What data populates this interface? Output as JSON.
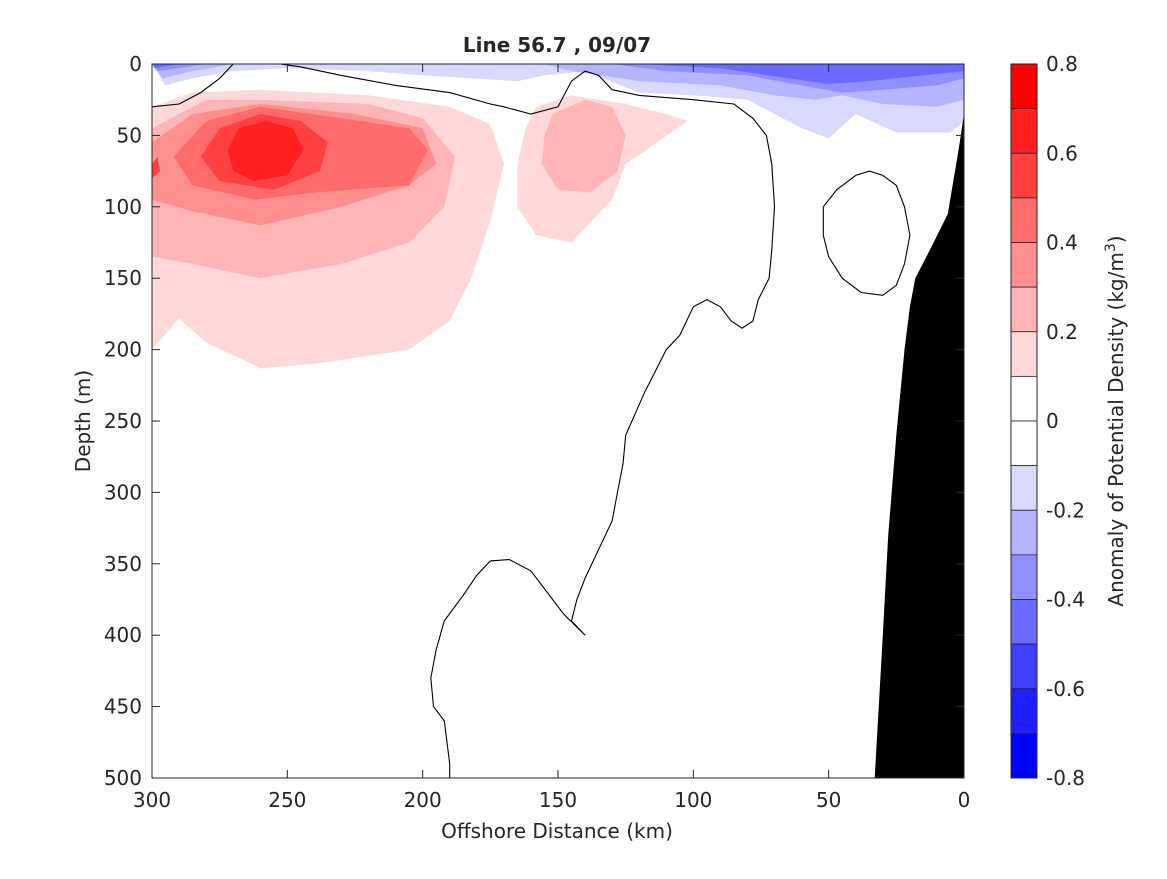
{
  "chart_data": {
    "type": "contour",
    "title": "Line 56.7 , 09/07",
    "xlabel": "Offshore Distance (km)",
    "ylabel": "Depth (m)",
    "xlim": [
      300,
      0
    ],
    "ylim": [
      500,
      0
    ],
    "x_ticks": [
      300,
      250,
      200,
      150,
      100,
      50,
      0
    ],
    "y_ticks": [
      0,
      50,
      100,
      150,
      200,
      250,
      300,
      350,
      400,
      450,
      500
    ],
    "colorbar": {
      "label": "Anomaly of Potential Density (kg/m",
      "label_superscript": "3",
      "label_close": ")",
      "range": [
        -0.8,
        0.8
      ],
      "tick_labels": [
        "0.8",
        "0.6",
        "0.4",
        "0.2",
        "0",
        "-0.2",
        "-0.4",
        "-0.6",
        "-0.8"
      ],
      "levels": [
        {
          "from": 0.7,
          "to": 0.8,
          "color": "#ff0000"
        },
        {
          "from": 0.6,
          "to": 0.7,
          "color": "#ff2020"
        },
        {
          "from": 0.5,
          "to": 0.6,
          "color": "#ff4040"
        },
        {
          "from": 0.4,
          "to": 0.5,
          "color": "#ff6a6a"
        },
        {
          "from": 0.3,
          "to": 0.4,
          "color": "#ff8f8f"
        },
        {
          "from": 0.2,
          "to": 0.3,
          "color": "#ffb5b5"
        },
        {
          "from": 0.1,
          "to": 0.2,
          "color": "#ffd9d9"
        },
        {
          "from": 0.0,
          "to": 0.1,
          "color": "#ffffff"
        },
        {
          "from": -0.1,
          "to": 0.0,
          "color": "#ffffff"
        },
        {
          "from": -0.2,
          "to": -0.1,
          "color": "#d9d9ff"
        },
        {
          "from": -0.3,
          "to": -0.2,
          "color": "#b5b5ff"
        },
        {
          "from": -0.4,
          "to": -0.3,
          "color": "#8f8fff"
        },
        {
          "from": -0.5,
          "to": -0.4,
          "color": "#6a6aff"
        },
        {
          "from": -0.6,
          "to": -0.5,
          "color": "#4040ff"
        },
        {
          "from": -0.7,
          "to": -0.6,
          "color": "#2020ff"
        },
        {
          "from": -0.8,
          "to": -0.7,
          "color": "#0000ff"
        }
      ]
    },
    "anomaly_regions": [
      {
        "level": 0.15,
        "color": "#ffd9d9",
        "outline": [
          [
            300,
            30
          ],
          [
            285,
            20
          ],
          [
            260,
            18
          ],
          [
            220,
            22
          ],
          [
            190,
            30
          ],
          [
            175,
            42
          ],
          [
            170,
            70
          ],
          [
            175,
            110
          ],
          [
            182,
            150
          ],
          [
            190,
            180
          ],
          [
            205,
            200
          ],
          [
            240,
            210
          ],
          [
            260,
            213
          ],
          [
            280,
            195
          ],
          [
            290,
            178
          ],
          [
            300,
            200
          ]
        ]
      },
      {
        "level": 0.25,
        "color": "#ffb5b5",
        "outline": [
          [
            300,
            45
          ],
          [
            280,
            25
          ],
          [
            260,
            25
          ],
          [
            220,
            28
          ],
          [
            200,
            38
          ],
          [
            188,
            65
          ],
          [
            192,
            100
          ],
          [
            205,
            125
          ],
          [
            230,
            140
          ],
          [
            260,
            150
          ],
          [
            285,
            140
          ],
          [
            300,
            135
          ]
        ]
      },
      {
        "level": 0.35,
        "color": "#ff8f8f",
        "outline": [
          [
            300,
            55
          ],
          [
            285,
            35
          ],
          [
            260,
            28
          ],
          [
            225,
            35
          ],
          [
            200,
            45
          ],
          [
            195,
            70
          ],
          [
            205,
            85
          ],
          [
            230,
            100
          ],
          [
            260,
            113
          ],
          [
            285,
            103
          ],
          [
            300,
            95
          ]
        ]
      },
      {
        "level": 0.45,
        "color": "#ff6a6a",
        "outline": [
          [
            292,
            65
          ],
          [
            280,
            40
          ],
          [
            260,
            30
          ],
          [
            230,
            38
          ],
          [
            205,
            45
          ],
          [
            198,
            60
          ],
          [
            205,
            85
          ],
          [
            240,
            90
          ],
          [
            262,
            95
          ],
          [
            285,
            85
          ]
        ]
      },
      {
        "level": 0.55,
        "color": "#ff4040",
        "outline": [
          [
            282,
            65
          ],
          [
            275,
            45
          ],
          [
            260,
            35
          ],
          [
            245,
            40
          ],
          [
            235,
            55
          ],
          [
            238,
            75
          ],
          [
            255,
            88
          ],
          [
            275,
            82
          ]
        ]
      },
      {
        "level": 0.65,
        "color": "#ff2020",
        "outline": [
          [
            272,
            60
          ],
          [
            268,
            45
          ],
          [
            258,
            40
          ],
          [
            248,
            45
          ],
          [
            244,
            60
          ],
          [
            250,
            78
          ],
          [
            262,
            82
          ],
          [
            270,
            75
          ]
        ]
      },
      {
        "level": 0.55,
        "color": "#ff4040",
        "outline": [
          [
            300,
            70
          ],
          [
            298,
            65
          ],
          [
            297,
            75
          ],
          [
            300,
            80
          ]
        ]
      },
      {
        "level": 0.15,
        "color": "#ffd9d9",
        "outline": [
          [
            158,
            30
          ],
          [
            145,
            22
          ],
          [
            125,
            28
          ],
          [
            110,
            35
          ],
          [
            102,
            40
          ],
          [
            125,
            70
          ],
          [
            130,
            95
          ],
          [
            145,
            125
          ],
          [
            158,
            120
          ],
          [
            165,
            100
          ],
          [
            165,
            70
          ],
          [
            162,
            45
          ]
        ]
      },
      {
        "level": 0.25,
        "color": "#ffb5b5",
        "outline": [
          [
            152,
            35
          ],
          [
            140,
            25
          ],
          [
            130,
            30
          ],
          [
            125,
            50
          ],
          [
            128,
            75
          ],
          [
            138,
            90
          ],
          [
            150,
            88
          ],
          [
            156,
            70
          ],
          [
            155,
            50
          ]
        ]
      },
      {
        "level": -0.15,
        "color": "#d9d9ff",
        "outline": [
          [
            300,
            0
          ],
          [
            295,
            15
          ],
          [
            285,
            10
          ],
          [
            270,
            5
          ],
          [
            250,
            3
          ],
          [
            220,
            5
          ],
          [
            200,
            8
          ],
          [
            165,
            12
          ],
          [
            155,
            8
          ],
          [
            140,
            5
          ],
          [
            120,
            20
          ],
          [
            100,
            22
          ],
          [
            80,
            25
          ],
          [
            60,
            45
          ],
          [
            50,
            52
          ],
          [
            40,
            35
          ],
          [
            25,
            48
          ],
          [
            5,
            48
          ],
          [
            0,
            40
          ],
          [
            0,
            0
          ]
        ]
      },
      {
        "level": -0.25,
        "color": "#b5b5ff",
        "outline": [
          [
            300,
            0
          ],
          [
            296,
            10
          ],
          [
            285,
            5
          ],
          [
            270,
            0
          ],
          [
            155,
            0
          ],
          [
            145,
            5
          ],
          [
            120,
            12
          ],
          [
            90,
            15
          ],
          [
            70,
            22
          ],
          [
            55,
            25
          ],
          [
            45,
            22
          ],
          [
            30,
            28
          ],
          [
            10,
            30
          ],
          [
            0,
            25
          ],
          [
            0,
            0
          ]
        ]
      },
      {
        "level": -0.35,
        "color": "#8f8fff",
        "outline": [
          [
            300,
            0
          ],
          [
            298,
            5
          ],
          [
            280,
            0
          ],
          [
            130,
            0
          ],
          [
            110,
            5
          ],
          [
            80,
            8
          ],
          [
            60,
            15
          ],
          [
            45,
            20
          ],
          [
            30,
            18
          ],
          [
            10,
            15
          ],
          [
            0,
            10
          ],
          [
            0,
            0
          ]
        ]
      },
      {
        "level": -0.45,
        "color": "#6a6aff",
        "outline": [
          [
            300,
            0
          ],
          [
            299,
            3
          ],
          [
            290,
            0
          ],
          [
            120,
            0
          ],
          [
            90,
            3
          ],
          [
            65,
            10
          ],
          [
            50,
            14
          ],
          [
            35,
            12
          ],
          [
            15,
            8
          ],
          [
            0,
            5
          ],
          [
            0,
            0
          ]
        ]
      }
    ],
    "zero_contours": [
      {
        "points": [
          [
            300,
            30
          ],
          [
            290,
            28
          ],
          [
            282,
            20
          ],
          [
            275,
            10
          ],
          [
            270,
            0
          ],
          [
            260,
            -2
          ],
          [
            245,
            2
          ],
          [
            230,
            8
          ],
          [
            210,
            15
          ],
          [
            190,
            20
          ],
          [
            175,
            28
          ],
          [
            170,
            30
          ],
          [
            160,
            35
          ],
          [
            150,
            30
          ],
          [
            145,
            12
          ],
          [
            140,
            5
          ],
          [
            135,
            8
          ],
          [
            130,
            18
          ],
          [
            120,
            22
          ],
          [
            100,
            25
          ],
          [
            85,
            28
          ],
          [
            78,
            38
          ],
          [
            73,
            50
          ],
          [
            71,
            70
          ],
          [
            70,
            100
          ],
          [
            71,
            130
          ],
          [
            72,
            150
          ],
          [
            76,
            165
          ],
          [
            78,
            180
          ],
          [
            82,
            185
          ],
          [
            86,
            180
          ],
          [
            90,
            170
          ],
          [
            95,
            165
          ],
          [
            100,
            170
          ],
          [
            105,
            190
          ],
          [
            110,
            200
          ],
          [
            118,
            230
          ],
          [
            125,
            260
          ],
          [
            126,
            280
          ],
          [
            128,
            300
          ],
          [
            130,
            320
          ],
          [
            135,
            340
          ],
          [
            140,
            360
          ],
          [
            143,
            375
          ],
          [
            145,
            390
          ],
          [
            140,
            400
          ],
          [
            148,
            385
          ],
          [
            152,
            375
          ],
          [
            160,
            355
          ],
          [
            168,
            347
          ],
          [
            175,
            348
          ],
          [
            180,
            358
          ],
          [
            185,
            372
          ],
          [
            192,
            390
          ],
          [
            195,
            410
          ],
          [
            197,
            430
          ],
          [
            196,
            450
          ],
          [
            192,
            460
          ],
          [
            190,
            490
          ],
          [
            190,
            500
          ]
        ]
      },
      {
        "points": [
          [
            52,
            100
          ],
          [
            52,
            120
          ],
          [
            50,
            135
          ],
          [
            45,
            150
          ],
          [
            38,
            160
          ],
          [
            30,
            162
          ],
          [
            25,
            155
          ],
          [
            22,
            140
          ],
          [
            20,
            120
          ],
          [
            22,
            100
          ],
          [
            25,
            85
          ],
          [
            30,
            78
          ],
          [
            35,
            75
          ],
          [
            40,
            78
          ],
          [
            47,
            88
          ],
          [
            52,
            100
          ]
        ]
      }
    ],
    "bathymetry": {
      "color": "#000000",
      "outline": [
        [
          33,
          500
        ],
        [
          30,
          400
        ],
        [
          28,
          330
        ],
        [
          25,
          260
        ],
        [
          22,
          200
        ],
        [
          20,
          170
        ],
        [
          18,
          150
        ],
        [
          12,
          128
        ],
        [
          6,
          105
        ],
        [
          2,
          60
        ],
        [
          0,
          35
        ],
        [
          0,
          500
        ]
      ]
    }
  }
}
